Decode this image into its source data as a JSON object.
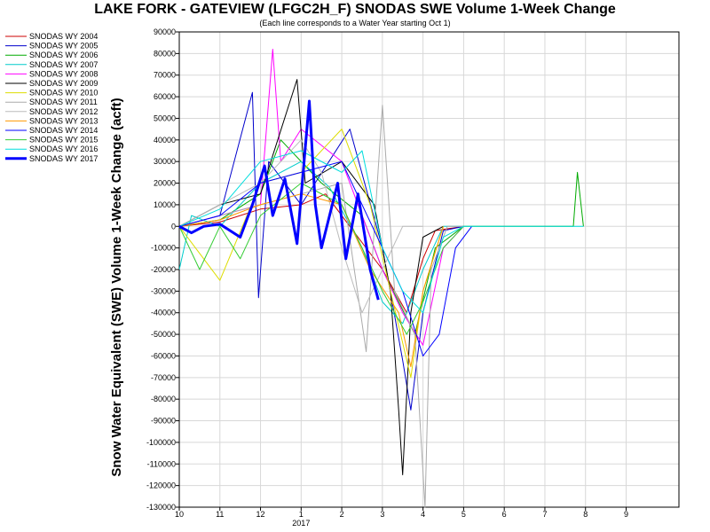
{
  "chart_data": {
    "type": "line",
    "title": "LAKE FORK - GATEVIEW (LFGC2H_F) SNODAS SWE Volume 1-Week Change",
    "subtitle": "(Each line corresponds to a Water Year starting Oct 1)",
    "ylabel": "Snow Water Equivalent (SWE) Volume 1-Week Change (acft)",
    "xlabel": "",
    "ylim": [
      -130000,
      90000
    ],
    "yticks": [
      90000,
      80000,
      70000,
      60000,
      50000,
      40000,
      30000,
      20000,
      10000,
      0,
      -10000,
      -20000,
      -30000,
      -40000,
      -50000,
      -60000,
      -70000,
      -80000,
      -90000,
      -100000,
      -110000,
      -120000,
      -130000
    ],
    "xlim": [
      10,
      10.98
    ],
    "xticks": [
      {
        "x": 10,
        "label": "10"
      },
      {
        "x": 11,
        "label": "11"
      },
      {
        "x": 12,
        "label": "12"
      },
      {
        "x": 1,
        "label": "1"
      },
      {
        "x": 2,
        "label": "2"
      },
      {
        "x": 3,
        "label": "3"
      },
      {
        "x": 4,
        "label": "4"
      },
      {
        "x": 5,
        "label": "5"
      },
      {
        "x": 6,
        "label": "6"
      },
      {
        "x": 7,
        "label": "7"
      },
      {
        "x": 8,
        "label": "8"
      },
      {
        "x": 9,
        "label": "9"
      }
    ],
    "year_label": "2017",
    "grid": true,
    "legend_position": "left",
    "series": [
      {
        "name": "SNODAS WY 2004",
        "color": "#cc0000",
        "bold": false,
        "points": [
          [
            0.0,
            0
          ],
          [
            1.0,
            2000
          ],
          [
            2.0,
            8000
          ],
          [
            3.0,
            10000
          ],
          [
            3.6,
            15000
          ],
          [
            4.2,
            0
          ],
          [
            5.0,
            -20000
          ],
          [
            5.6,
            -40000
          ],
          [
            6.0,
            -15000
          ],
          [
            6.3,
            -2000
          ],
          [
            7.0,
            0
          ]
        ]
      },
      {
        "name": "SNODAS WY 2005",
        "color": "#0000cc",
        "bold": false,
        "points": [
          [
            0.0,
            0
          ],
          [
            1.0,
            5000
          ],
          [
            1.8,
            62000
          ],
          [
            1.95,
            -33000
          ],
          [
            2.2,
            30000
          ],
          [
            3.0,
            10000
          ],
          [
            4.2,
            45000
          ],
          [
            5.0,
            -10000
          ],
          [
            5.5,
            -62000
          ],
          [
            5.7,
            -85000
          ],
          [
            6.0,
            -40000
          ],
          [
            6.5,
            -2000
          ],
          [
            7.0,
            0
          ]
        ]
      },
      {
        "name": "SNODAS WY 2006",
        "color": "#00aa00",
        "bold": false,
        "points": [
          [
            0.0,
            0
          ],
          [
            1.0,
            3000
          ],
          [
            2.0,
            15000
          ],
          [
            2.5,
            40000
          ],
          [
            3.5,
            20000
          ],
          [
            4.5,
            5000
          ],
          [
            5.0,
            -20000
          ],
          [
            5.8,
            -50000
          ],
          [
            6.3,
            -10000
          ],
          [
            7.0,
            0
          ],
          [
            9.7,
            0
          ],
          [
            9.8,
            25000
          ],
          [
            9.95,
            0
          ]
        ]
      },
      {
        "name": "SNODAS WY 2007",
        "color": "#00cccc",
        "bold": false,
        "points": [
          [
            0.0,
            -20000
          ],
          [
            0.3,
            5000
          ],
          [
            1.0,
            0
          ],
          [
            2.0,
            20000
          ],
          [
            3.0,
            30000
          ],
          [
            3.7,
            18000
          ],
          [
            4.5,
            -10000
          ],
          [
            5.0,
            -35000
          ],
          [
            5.5,
            -45000
          ],
          [
            6.0,
            -20000
          ],
          [
            6.5,
            0
          ],
          [
            7.0,
            0
          ]
        ]
      },
      {
        "name": "SNODAS WY 2008",
        "color": "#ff00ff",
        "bold": false,
        "points": [
          [
            0.0,
            0
          ],
          [
            1.0,
            5000
          ],
          [
            2.0,
            10000
          ],
          [
            2.3,
            82000
          ],
          [
            2.5,
            30000
          ],
          [
            3.0,
            45000
          ],
          [
            4.0,
            30000
          ],
          [
            5.0,
            -20000
          ],
          [
            5.5,
            -40000
          ],
          [
            6.0,
            -55000
          ],
          [
            6.5,
            -10000
          ],
          [
            7.0,
            0
          ]
        ]
      },
      {
        "name": "SNODAS WY 2009",
        "color": "#000000",
        "bold": false,
        "points": [
          [
            0.0,
            0
          ],
          [
            1.0,
            10000
          ],
          [
            2.0,
            15000
          ],
          [
            2.9,
            68000
          ],
          [
            3.1,
            20000
          ],
          [
            4.0,
            30000
          ],
          [
            4.8,
            10000
          ],
          [
            5.2,
            -30000
          ],
          [
            5.4,
            -85000
          ],
          [
            5.5,
            -115000
          ],
          [
            5.7,
            -40000
          ],
          [
            6.0,
            -5000
          ],
          [
            6.5,
            0
          ]
        ]
      },
      {
        "name": "SNODAS WY 2010",
        "color": "#dddd00",
        "bold": false,
        "points": [
          [
            0.0,
            0
          ],
          [
            1.0,
            -25000
          ],
          [
            2.0,
            20000
          ],
          [
            3.0,
            25000
          ],
          [
            4.0,
            45000
          ],
          [
            4.7,
            10000
          ],
          [
            5.2,
            -30000
          ],
          [
            5.7,
            -70000
          ],
          [
            6.0,
            -30000
          ],
          [
            6.5,
            0
          ]
        ]
      },
      {
        "name": "SNODAS WY 2011",
        "color": "#aaaaaa",
        "bold": false,
        "points": [
          [
            0.0,
            0
          ],
          [
            1.0,
            5000
          ],
          [
            2.0,
            10000
          ],
          [
            3.0,
            15000
          ],
          [
            4.0,
            20000
          ],
          [
            4.6,
            -58000
          ],
          [
            5.0,
            56000
          ],
          [
            5.3,
            -30000
          ],
          [
            5.8,
            -50000
          ],
          [
            6.05,
            -130000
          ],
          [
            6.2,
            -20000
          ],
          [
            6.6,
            0
          ],
          [
            7.0,
            0
          ]
        ]
      },
      {
        "name": "SNODAS WY 2012",
        "color": "#bbbbbb",
        "bold": false,
        "points": [
          [
            0.0,
            0
          ],
          [
            1.0,
            10000
          ],
          [
            2.0,
            20000
          ],
          [
            3.0,
            40000
          ],
          [
            3.5,
            25000
          ],
          [
            4.0,
            -10000
          ],
          [
            4.5,
            -40000
          ],
          [
            5.0,
            -20000
          ],
          [
            5.5,
            0
          ],
          [
            6.0,
            0
          ]
        ]
      },
      {
        "name": "SNODAS WY 2013",
        "color": "#ff9900",
        "bold": false,
        "points": [
          [
            0.0,
            0
          ],
          [
            1.0,
            3000
          ],
          [
            2.0,
            10000
          ],
          [
            3.0,
            15000
          ],
          [
            4.0,
            10000
          ],
          [
            4.7,
            -20000
          ],
          [
            5.4,
            -40000
          ],
          [
            5.7,
            -65000
          ],
          [
            6.0,
            -30000
          ],
          [
            6.5,
            0
          ]
        ]
      },
      {
        "name": "SNODAS WY 2014",
        "color": "#0000ff",
        "bold": false,
        "points": [
          [
            0.0,
            0
          ],
          [
            1.0,
            5000
          ],
          [
            2.0,
            20000
          ],
          [
            3.0,
            25000
          ],
          [
            4.0,
            30000
          ],
          [
            5.0,
            -10000
          ],
          [
            5.5,
            -30000
          ],
          [
            6.0,
            -60000
          ],
          [
            6.4,
            -50000
          ],
          [
            6.8,
            -10000
          ],
          [
            7.2,
            0
          ]
        ]
      },
      {
        "name": "SNODAS WY 2015",
        "color": "#33cc33",
        "bold": false,
        "points": [
          [
            0.0,
            0
          ],
          [
            0.5,
            -20000
          ],
          [
            1.0,
            0
          ],
          [
            1.5,
            -15000
          ],
          [
            2.0,
            5000
          ],
          [
            3.0,
            20000
          ],
          [
            4.0,
            10000
          ],
          [
            5.0,
            -30000
          ],
          [
            5.6,
            -50000
          ],
          [
            6.0,
            -35000
          ],
          [
            6.5,
            -10000
          ],
          [
            7.0,
            0
          ]
        ]
      },
      {
        "name": "SNODAS WY 2016",
        "color": "#00dddd",
        "bold": false,
        "points": [
          [
            0.0,
            0
          ],
          [
            1.0,
            8000
          ],
          [
            2.0,
            30000
          ],
          [
            3.0,
            35000
          ],
          [
            4.0,
            25000
          ],
          [
            4.5,
            35000
          ],
          [
            5.0,
            -10000
          ],
          [
            5.5,
            -30000
          ],
          [
            6.0,
            -40000
          ],
          [
            6.5,
            -5000
          ],
          [
            7.0,
            0
          ],
          [
            9.95,
            0
          ]
        ]
      },
      {
        "name": "SNODAS WY 2017",
        "color": "#0000ff",
        "bold": true,
        "points": [
          [
            0.0,
            0
          ],
          [
            0.3,
            -3000
          ],
          [
            0.6,
            0
          ],
          [
            1.0,
            1000
          ],
          [
            1.5,
            -5000
          ],
          [
            1.8,
            10000
          ],
          [
            2.1,
            28000
          ],
          [
            2.3,
            5000
          ],
          [
            2.6,
            22000
          ],
          [
            2.9,
            -8000
          ],
          [
            3.2,
            58000
          ],
          [
            3.35,
            10000
          ],
          [
            3.5,
            -10000
          ],
          [
            3.9,
            20000
          ],
          [
            4.1,
            -15000
          ],
          [
            4.4,
            15000
          ],
          [
            4.7,
            -20000
          ],
          [
            4.9,
            -34000
          ]
        ]
      }
    ]
  }
}
